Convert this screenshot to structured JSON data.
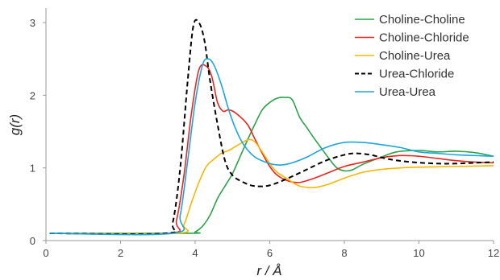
{
  "chart_data": {
    "type": "line",
    "title": "",
    "xlabel": "r / Å",
    "ylabel": "g(r)",
    "xlim": [
      0,
      12
    ],
    "ylim": [
      0,
      3.2
    ],
    "xticks": [
      "0",
      "2",
      "4",
      "6",
      "8",
      "10",
      "12"
    ],
    "yticks": [
      "0",
      "1",
      "2",
      "3"
    ],
    "grid": false,
    "legend_position": "top-right",
    "series": [
      {
        "name": "Choline-Choline",
        "color": "#2ca24a",
        "dash": "solid",
        "points": [
          [
            0.1,
            0.1
          ],
          [
            3.8,
            0.1
          ],
          [
            4.0,
            0.12
          ],
          [
            4.2,
            0.2
          ],
          [
            4.4,
            0.35
          ],
          [
            4.6,
            0.58
          ],
          [
            4.8,
            0.75
          ],
          [
            5.0,
            0.92
          ],
          [
            5.2,
            1.15
          ],
          [
            5.4,
            1.38
          ],
          [
            5.6,
            1.6
          ],
          [
            5.8,
            1.8
          ],
          [
            6.0,
            1.9
          ],
          [
            6.2,
            1.96
          ],
          [
            6.4,
            1.97
          ],
          [
            6.6,
            1.94
          ],
          [
            6.8,
            1.7
          ],
          [
            7.0,
            1.55
          ],
          [
            7.2,
            1.4
          ],
          [
            7.4,
            1.26
          ],
          [
            7.6,
            1.12
          ],
          [
            7.8,
            1.0
          ],
          [
            8.0,
            0.96
          ],
          [
            8.2,
            0.97
          ],
          [
            8.5,
            1.05
          ],
          [
            9.0,
            1.15
          ],
          [
            9.4,
            1.22
          ],
          [
            10.0,
            1.24
          ],
          [
            10.5,
            1.22
          ],
          [
            11.0,
            1.23
          ],
          [
            11.5,
            1.21
          ],
          [
            12.0,
            1.16
          ]
        ]
      },
      {
        "name": "Choline-Chloride",
        "color": "#e8251f",
        "dash": "solid",
        "points": [
          [
            0.1,
            0.1
          ],
          [
            3.3,
            0.1
          ],
          [
            3.5,
            0.28
          ],
          [
            3.7,
            0.9
          ],
          [
            3.9,
            1.75
          ],
          [
            4.1,
            2.35
          ],
          [
            4.3,
            2.4
          ],
          [
            4.45,
            2.25
          ],
          [
            4.6,
            1.9
          ],
          [
            4.75,
            1.78
          ],
          [
            4.9,
            1.8
          ],
          [
            5.1,
            1.75
          ],
          [
            5.4,
            1.6
          ],
          [
            5.6,
            1.4
          ],
          [
            5.8,
            1.2
          ],
          [
            6.0,
            1.02
          ],
          [
            6.2,
            0.9
          ],
          [
            6.5,
            0.82
          ],
          [
            6.8,
            0.8
          ],
          [
            7.2,
            0.86
          ],
          [
            7.6,
            0.94
          ],
          [
            8.0,
            1.02
          ],
          [
            8.5,
            1.08
          ],
          [
            9.0,
            1.14
          ],
          [
            9.5,
            1.17
          ],
          [
            10.0,
            1.16
          ],
          [
            10.5,
            1.13
          ],
          [
            11.0,
            1.1
          ],
          [
            11.5,
            1.08
          ],
          [
            12.0,
            1.07
          ]
        ]
      },
      {
        "name": "Choline-Urea",
        "color": "#f5b800",
        "dash": "solid",
        "points": [
          [
            0.1,
            0.1
          ],
          [
            3.5,
            0.1
          ],
          [
            3.7,
            0.22
          ],
          [
            3.9,
            0.52
          ],
          [
            4.1,
            0.8
          ],
          [
            4.3,
            1.02
          ],
          [
            4.5,
            1.12
          ],
          [
            4.7,
            1.2
          ],
          [
            4.9,
            1.24
          ],
          [
            5.1,
            1.3
          ],
          [
            5.3,
            1.36
          ],
          [
            5.45,
            1.39
          ],
          [
            5.6,
            1.36
          ],
          [
            5.8,
            1.22
          ],
          [
            6.0,
            1.06
          ],
          [
            6.2,
            0.94
          ],
          [
            6.5,
            0.84
          ],
          [
            6.8,
            0.75
          ],
          [
            7.2,
            0.73
          ],
          [
            7.6,
            0.78
          ],
          [
            8.0,
            0.86
          ],
          [
            8.5,
            0.94
          ],
          [
            9.0,
            0.98
          ],
          [
            9.5,
            1.0
          ],
          [
            10.0,
            1.01
          ],
          [
            11.0,
            1.02
          ],
          [
            12.0,
            1.03
          ]
        ]
      },
      {
        "name": "Urea-Chloride",
        "color": "#000000",
        "dash": "dashed",
        "points": [
          [
            0.1,
            0.1
          ],
          [
            3.2,
            0.1
          ],
          [
            3.4,
            0.25
          ],
          [
            3.6,
            1.0
          ],
          [
            3.8,
            2.2
          ],
          [
            3.95,
            2.95
          ],
          [
            4.1,
            3.0
          ],
          [
            4.25,
            2.75
          ],
          [
            4.4,
            2.2
          ],
          [
            4.6,
            1.6
          ],
          [
            4.8,
            1.1
          ],
          [
            5.0,
            0.9
          ],
          [
            5.3,
            0.8
          ],
          [
            5.6,
            0.75
          ],
          [
            6.0,
            0.76
          ],
          [
            6.5,
            0.86
          ],
          [
            7.0,
            0.98
          ],
          [
            7.5,
            1.1
          ],
          [
            8.0,
            1.18
          ],
          [
            8.3,
            1.2
          ],
          [
            8.7,
            1.18
          ],
          [
            9.2,
            1.12
          ],
          [
            9.8,
            1.08
          ],
          [
            10.5,
            1.06
          ],
          [
            11.0,
            1.06
          ],
          [
            11.5,
            1.07
          ],
          [
            12.0,
            1.08
          ]
        ]
      },
      {
        "name": "Urea-Urea",
        "color": "#1ba6dc",
        "dash": "solid",
        "points": [
          [
            0.1,
            0.1
          ],
          [
            3.4,
            0.1
          ],
          [
            3.6,
            0.35
          ],
          [
            3.8,
            1.1
          ],
          [
            4.0,
            1.9
          ],
          [
            4.2,
            2.42
          ],
          [
            4.35,
            2.5
          ],
          [
            4.5,
            2.42
          ],
          [
            4.7,
            2.15
          ],
          [
            4.9,
            1.8
          ],
          [
            5.1,
            1.52
          ],
          [
            5.3,
            1.32
          ],
          [
            5.6,
            1.15
          ],
          [
            6.0,
            1.06
          ],
          [
            6.3,
            1.04
          ],
          [
            6.6,
            1.07
          ],
          [
            7.0,
            1.15
          ],
          [
            7.5,
            1.28
          ],
          [
            8.0,
            1.35
          ],
          [
            8.5,
            1.35
          ],
          [
            9.0,
            1.32
          ],
          [
            9.5,
            1.28
          ],
          [
            10.0,
            1.22
          ],
          [
            10.5,
            1.2
          ],
          [
            11.0,
            1.18
          ],
          [
            11.5,
            1.17
          ],
          [
            12.0,
            1.16
          ]
        ]
      }
    ]
  }
}
